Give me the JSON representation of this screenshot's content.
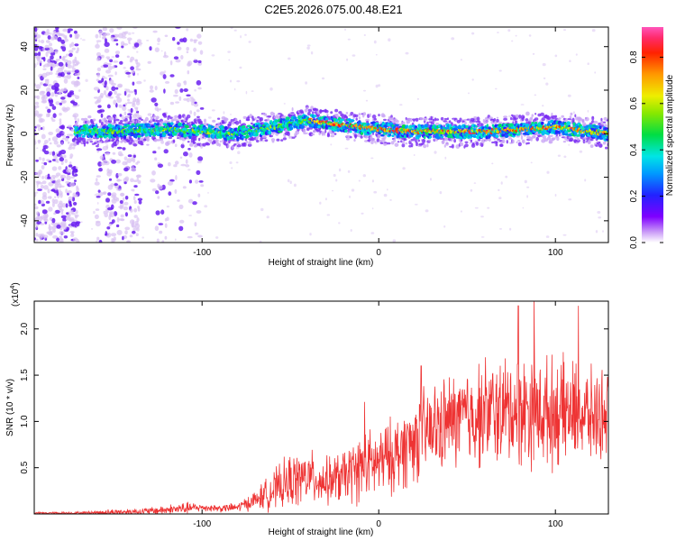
{
  "page": {
    "title": "C2E5.2026.075.00.48.E21"
  },
  "colors": {
    "line": "#ee3333",
    "axis": "#000000",
    "sparse_dots": "#d8c2f2",
    "dense_dots": "#6a1ef0"
  },
  "chart_data": [
    {
      "id": "spectrogram",
      "type": "heatmap",
      "title": "C2E5.2026.075.00.48.E21",
      "xlabel": "Height of straight line (km)",
      "ylabel": "Frequency (Hz)",
      "xlim": [
        -195,
        130
      ],
      "ylim": [
        -50,
        49
      ],
      "xticks": [
        -100,
        0,
        100
      ],
      "xtick_labels": [
        "-100",
        "0",
        "100"
      ],
      "yticks": [
        -40,
        -20,
        0,
        20,
        40
      ],
      "ytick_labels": [
        "-40",
        "-20",
        "0",
        "20",
        "40"
      ],
      "colorbar": {
        "label": "Normalized spectral amplitude",
        "range": [
          0,
          0.93
        ],
        "ticks": [
          0.0,
          0.2,
          0.4,
          0.6,
          0.8
        ],
        "tick_labels": [
          "0.0",
          "0.2",
          "0.4",
          "0.6",
          "0.8"
        ]
      },
      "ridge": {
        "description_points": [
          {
            "x": -172,
            "y": 1
          },
          {
            "x": -150,
            "y": 1
          },
          {
            "x": -120,
            "y": 2
          },
          {
            "x": -100,
            "y": 1
          },
          {
            "x": -80,
            "y": 0
          },
          {
            "x": -60,
            "y": 3
          },
          {
            "x": -40,
            "y": 6
          },
          {
            "x": -20,
            "y": 4
          },
          {
            "x": 0,
            "y": 2
          },
          {
            "x": 20,
            "y": 1
          },
          {
            "x": 40,
            "y": 1
          },
          {
            "x": 60,
            "y": 1
          },
          {
            "x": 80,
            "y": 2
          },
          {
            "x": 100,
            "y": 3
          },
          {
            "x": 130,
            "y": 0
          }
        ],
        "halfwidth_hz": 4
      },
      "noisy_bands_x": [
        [
          -195,
          -170
        ],
        [
          -160,
          -135
        ],
        [
          -130,
          -100
        ]
      ]
    },
    {
      "id": "snr",
      "type": "line",
      "title": "",
      "xlabel": "Height of straight line (km)",
      "ylabel": "SNR (10 * v/v)",
      "scale_label": "(x10",
      "scale_exponent": "4",
      "scale_suffix": ")",
      "xlim": [
        -195,
        130
      ],
      "ylim": [
        0,
        2.3
      ],
      "xticks": [
        -100,
        0,
        100
      ],
      "xtick_labels": [
        "-100",
        "0",
        "100"
      ],
      "yticks": [
        0.5,
        1.0,
        1.5,
        2.0
      ],
      "ytick_labels": [
        "0.5",
        "1.0",
        "1.5",
        "2.0"
      ],
      "series": [
        {
          "name": "SNR",
          "envelope_x": [
            -195,
            -170,
            -150,
            -130,
            -110,
            -100,
            -90,
            -80,
            -70,
            -60,
            -50,
            -40,
            -30,
            -20,
            -10,
            0,
            10,
            20,
            30,
            40,
            50,
            60,
            70,
            80,
            90,
            100,
            110,
            120,
            130
          ],
          "envelope_base": [
            0.01,
            0.01,
            0.02,
            0.03,
            0.06,
            0.07,
            0.06,
            0.07,
            0.15,
            0.25,
            0.35,
            0.4,
            0.35,
            0.4,
            0.5,
            0.55,
            0.65,
            0.8,
            0.9,
            1.0,
            1.05,
            1.1,
            1.1,
            1.15,
            1.1,
            1.1,
            1.1,
            1.05,
            1.1
          ],
          "envelope_amp": [
            0.01,
            0.02,
            0.04,
            0.05,
            0.08,
            0.05,
            0.05,
            0.06,
            0.12,
            0.25,
            0.35,
            0.35,
            0.3,
            0.35,
            0.45,
            0.45,
            0.5,
            0.55,
            0.6,
            0.6,
            0.65,
            0.7,
            0.7,
            0.75,
            0.7,
            0.7,
            0.65,
            0.6,
            0.55
          ]
        }
      ],
      "spikes": [
        {
          "x": -8,
          "y": 1.21
        },
        {
          "x": 24,
          "y": 1.6
        },
        {
          "x": 79,
          "y": 2.25
        },
        {
          "x": 88,
          "y": 2.3
        },
        {
          "x": 113,
          "y": 2.25
        }
      ]
    }
  ]
}
